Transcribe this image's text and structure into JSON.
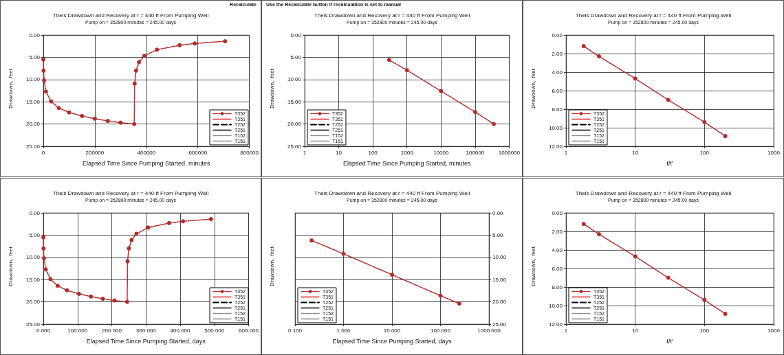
{
  "chart_data": [
    {
      "type": "line",
      "title": "Theis Drawdown and Recovery at r = 440 ft From Pumping Well",
      "subtitle": "Pump on = 352800 minutes = 245.00 days",
      "xlabel": "Elapsed Time Since Pumping Started, minutes",
      "ylabel": "Drawdown,  feet",
      "annotations": [
        "Recalculate"
      ],
      "grid": true,
      "legend": "bottom right",
      "xlim": [
        0,
        800000
      ],
      "xticks": [
        0,
        200000,
        400000,
        600000,
        800000
      ],
      "ylim": [
        25,
        0
      ],
      "yticks": [
        {
          "value": 0,
          "label": "0.00"
        },
        {
          "value": 5,
          "label": "5.00"
        },
        {
          "value": 10,
          "label": "10.00"
        },
        {
          "value": 15,
          "label": "15.00"
        },
        {
          "value": 20,
          "label": "20.00"
        },
        {
          "value": 25,
          "label": "25.00"
        }
      ],
      "x": [
        300,
        1000,
        3000,
        10000,
        30000,
        60000,
        100000,
        150000,
        200000,
        250000,
        300000,
        352800,
        354600,
        360000,
        371400,
        392000,
        441000,
        529200,
        588000,
        705600
      ],
      "series": [
        {
          "name": "T352",
          "color": "#b52a2a",
          "line_style": "dotted",
          "marker": "circle",
          "values": [
            5.5,
            8.0,
            10.2,
            12.7,
            14.9,
            16.4,
            17.4,
            18.2,
            18.8,
            19.3,
            19.7,
            20.0,
            10.9,
            8.0,
            6.1,
            4.7,
            3.3,
            2.3,
            1.9,
            1.4
          ]
        },
        {
          "name": "T351",
          "color": "#dd2222",
          "line_style": "solid",
          "values": [
            null,
            null,
            null,
            null,
            null,
            null,
            null,
            null,
            null,
            null,
            null,
            null,
            null,
            null,
            null,
            null,
            null,
            null,
            null,
            null
          ]
        },
        {
          "name": "T252",
          "color": "#000000",
          "line_style": "dashed",
          "values": [
            null,
            null,
            null,
            null,
            null,
            null,
            null,
            null,
            null,
            null,
            null,
            null,
            null,
            null,
            null,
            null,
            null,
            null,
            null,
            null
          ]
        },
        {
          "name": "T251",
          "color": "#000000",
          "line_style": "solid",
          "values": [
            null,
            null,
            null,
            null,
            null,
            null,
            null,
            null,
            null,
            null,
            null,
            null,
            null,
            null,
            null,
            null,
            null,
            null,
            null,
            null
          ]
        },
        {
          "name": "T152",
          "color": "#888888",
          "line_style": "dotted",
          "values": [
            null,
            null,
            null,
            null,
            null,
            null,
            null,
            null,
            null,
            null,
            null,
            null,
            null,
            null,
            null,
            null,
            null,
            null,
            null,
            null
          ]
        },
        {
          "name": "T151",
          "color": "#888888",
          "line_style": "solid",
          "values": [
            null,
            null,
            null,
            null,
            null,
            null,
            null,
            null,
            null,
            null,
            null,
            null,
            null,
            null,
            null,
            null,
            null,
            null,
            null,
            null
          ]
        }
      ]
    },
    {
      "type": "line",
      "title": "Theis Drawdown and Recovery at r = 440 ft From Pumping Well",
      "subtitle": "Pump on = 352800 minutes = 245.00 days",
      "xlabel": "Elapsed Time Since Pumping Started, minutes",
      "ylabel": "Drawdown,  feet",
      "annotations": [
        "Use the Recalculate button if recalculation is set to manual"
      ],
      "grid": true,
      "legend": "bottom left",
      "log": "x",
      "xlim": [
        1,
        1000000
      ],
      "xticks": [
        1,
        10,
        100,
        1000,
        10000,
        100000,
        1000000
      ],
      "ylim": [
        25,
        0
      ],
      "yticks": [
        {
          "value": 0,
          "label": "0.00"
        },
        {
          "value": 5,
          "label": "5.00"
        },
        {
          "value": 10,
          "label": "10.00"
        },
        {
          "value": 15,
          "label": "15.00"
        },
        {
          "value": 20,
          "label": "20.00"
        },
        {
          "value": 25,
          "label": "25.00"
        }
      ],
      "x": [
        300,
        1000,
        10000,
        100000,
        352800
      ],
      "series": [
        {
          "name": "T352",
          "color": "#b52a2a",
          "line_style": "dotted",
          "marker": "circle",
          "values": [
            5.6,
            7.9,
            12.6,
            17.3,
            20.0
          ]
        },
        {
          "name": "T351",
          "color": "#dd2222",
          "line_style": "solid",
          "values": [
            null,
            null,
            null,
            null,
            null
          ]
        },
        {
          "name": "T252",
          "color": "#000000",
          "line_style": "dashed",
          "values": [
            null,
            null,
            null,
            null,
            null
          ]
        },
        {
          "name": "T251",
          "color": "#000000",
          "line_style": "solid",
          "values": [
            null,
            null,
            null,
            null,
            null
          ]
        },
        {
          "name": "T152",
          "color": "#888888",
          "line_style": "dotted",
          "values": [
            null,
            null,
            null,
            null,
            null
          ]
        },
        {
          "name": "T151",
          "color": "#888888",
          "line_style": "solid",
          "values": [
            null,
            null,
            null,
            null,
            null
          ]
        }
      ]
    },
    {
      "type": "line",
      "title": "Theis Drawdown and Recovery at r = 440 ft From Pumping Well",
      "subtitle": "Pump on = 352800 minutes = 245.00 days",
      "xlabel": "t/t'",
      "ylabel": "Drawdown,  feet",
      "grid": true,
      "legend": "bottom left",
      "log": "x",
      "xlim": [
        1,
        1000
      ],
      "xticks": [
        1,
        10,
        100,
        1000
      ],
      "ylim": [
        12,
        0
      ],
      "yticks": [
        {
          "value": 0,
          "label": "0.00"
        },
        {
          "value": 2,
          "label": "2.00"
        },
        {
          "value": 4,
          "label": "4.00"
        },
        {
          "value": 6,
          "label": "6.00"
        },
        {
          "value": 8,
          "label": "8.00"
        },
        {
          "value": 10,
          "label": "10.00"
        },
        {
          "value": 12,
          "label": "12.00"
        }
      ],
      "x": [
        1.8,
        3,
        10,
        30,
        100,
        200
      ],
      "series": [
        {
          "name": "T352",
          "color": "#b52a2a",
          "line_style": "dotted",
          "marker": "circle",
          "values": [
            1.2,
            2.3,
            4.7,
            7.0,
            9.4,
            10.9
          ]
        },
        {
          "name": "T351",
          "color": "#dd2222",
          "line_style": "solid",
          "values": [
            null,
            null,
            null,
            null,
            null,
            null
          ]
        },
        {
          "name": "T252",
          "color": "#000000",
          "line_style": "dashed",
          "values": [
            null,
            null,
            null,
            null,
            null,
            null
          ]
        },
        {
          "name": "T251",
          "color": "#000000",
          "line_style": "solid",
          "values": [
            null,
            null,
            null,
            null,
            null,
            null
          ]
        },
        {
          "name": "T152",
          "color": "#888888",
          "line_style": "dotted",
          "values": [
            null,
            null,
            null,
            null,
            null,
            null
          ]
        },
        {
          "name": "T151",
          "color": "#888888",
          "line_style": "solid",
          "values": [
            null,
            null,
            null,
            null,
            null,
            null
          ]
        }
      ]
    },
    {
      "type": "line",
      "title": "Theis Drawdown and Recovery at r = 440 ft From Pumping Well",
      "subtitle": "Pump on = 352800 minutes = 245.00 days",
      "xlabel": "Elapsed Time Since Pumping Started, days",
      "ylabel": "Drawdown,  feet",
      "grid": true,
      "legend": "bottom right",
      "xlim": [
        0,
        600
      ],
      "xticks": [
        {
          "value": 0,
          "label": "0.000"
        },
        {
          "value": 100,
          "label": "100.000"
        },
        {
          "value": 200,
          "label": "200.000"
        },
        {
          "value": 300,
          "label": "300.000"
        },
        {
          "value": 400,
          "label": "400.000"
        },
        {
          "value": 500,
          "label": "500.000"
        },
        {
          "value": 600,
          "label": "600.000"
        }
      ],
      "ylim": [
        25,
        0
      ],
      "yticks": [
        {
          "value": 0,
          "label": "0.00"
        },
        {
          "value": 5,
          "label": "5.00"
        },
        {
          "value": 10,
          "label": "10.00"
        },
        {
          "value": 15,
          "label": "15.00"
        },
        {
          "value": 20,
          "label": "20.00"
        },
        {
          "value": 25,
          "label": "25.00"
        }
      ],
      "x": [
        0.2,
        0.7,
        2,
        7,
        21,
        42,
        69,
        104,
        139,
        174,
        208,
        245,
        246.2,
        250,
        257.9,
        272.2,
        306.3,
        367.5,
        408.3,
        490
      ],
      "series": [
        {
          "name": "T352",
          "color": "#b52a2a",
          "line_style": "dotted",
          "marker": "circle",
          "values": [
            5.5,
            8.0,
            10.2,
            12.7,
            14.9,
            16.4,
            17.4,
            18.2,
            18.8,
            19.3,
            19.7,
            20.0,
            10.9,
            8.0,
            6.1,
            4.7,
            3.3,
            2.3,
            1.9,
            1.4
          ]
        },
        {
          "name": "T351",
          "color": "#dd2222",
          "line_style": "solid",
          "values": [
            null,
            null,
            null,
            null,
            null,
            null,
            null,
            null,
            null,
            null,
            null,
            null,
            null,
            null,
            null,
            null,
            null,
            null,
            null,
            null
          ]
        },
        {
          "name": "T252",
          "color": "#000000",
          "line_style": "dashed",
          "values": [
            null,
            null,
            null,
            null,
            null,
            null,
            null,
            null,
            null,
            null,
            null,
            null,
            null,
            null,
            null,
            null,
            null,
            null,
            null,
            null
          ]
        },
        {
          "name": "T251",
          "color": "#000000",
          "line_style": "solid",
          "values": [
            null,
            null,
            null,
            null,
            null,
            null,
            null,
            null,
            null,
            null,
            null,
            null,
            null,
            null,
            null,
            null,
            null,
            null,
            null,
            null
          ]
        },
        {
          "name": "T152",
          "color": "#888888",
          "line_style": "dotted",
          "values": [
            null,
            null,
            null,
            null,
            null,
            null,
            null,
            null,
            null,
            null,
            null,
            null,
            null,
            null,
            null,
            null,
            null,
            null,
            null,
            null
          ]
        },
        {
          "name": "T151",
          "color": "#888888",
          "line_style": "solid",
          "values": [
            null,
            null,
            null,
            null,
            null,
            null,
            null,
            null,
            null,
            null,
            null,
            null,
            null,
            null,
            null,
            null,
            null,
            null,
            null,
            null
          ]
        }
      ]
    },
    {
      "type": "line",
      "title": "Theis Drawdown and Recovery at r = 440 ft From Pumping Well",
      "subtitle": "Pump on = 352800 minutes = 245.00 days",
      "xlabel": "Elapsed Time Since Pumping Started, days",
      "ylabel": "Drawdown,  feet",
      "grid": true,
      "legend": "bottom left",
      "log": "x",
      "xlim": [
        0.1,
        1000
      ],
      "xticks": [
        {
          "value": 0.1,
          "label": "0.100"
        },
        {
          "value": 1,
          "label": "1.000"
        },
        {
          "value": 10,
          "label": "10.000"
        },
        {
          "value": 100,
          "label": "100.000"
        },
        {
          "value": 1000,
          "label": "1000.000"
        }
      ],
      "y2lim": [
        25,
        0
      ],
      "y2ticks": [
        {
          "value": 0,
          "label": "0.00"
        },
        {
          "value": 5,
          "label": "5.00"
        },
        {
          "value": 10,
          "label": "10.00"
        },
        {
          "value": 15,
          "label": "15.00"
        },
        {
          "value": 20,
          "label": "20.00"
        },
        {
          "value": 25,
          "label": "25.00"
        }
      ],
      "x": [
        0.22,
        1,
        10,
        100,
        245
      ],
      "series": [
        {
          "name": "T352",
          "axis": "y2",
          "color": "#b52a2a",
          "line_style": "dotted",
          "marker": "circle",
          "values": [
            6.2,
            9.2,
            13.9,
            18.6,
            20.4
          ]
        },
        {
          "name": "T351",
          "axis": "y2",
          "color": "#dd2222",
          "line_style": "solid",
          "values": [
            null,
            null,
            null,
            null,
            null
          ]
        },
        {
          "name": "T252",
          "axis": "y2",
          "color": "#000000",
          "line_style": "dashed",
          "values": [
            null,
            null,
            null,
            null,
            null
          ]
        },
        {
          "name": "T251",
          "axis": "y2",
          "color": "#000000",
          "line_style": "solid",
          "values": [
            null,
            null,
            null,
            null,
            null
          ]
        },
        {
          "name": "T152",
          "axis": "y2",
          "color": "#888888",
          "line_style": "dotted",
          "values": [
            null,
            null,
            null,
            null,
            null
          ]
        },
        {
          "name": "T151",
          "axis": "y2",
          "color": "#888888",
          "line_style": "solid",
          "values": [
            null,
            null,
            null,
            null,
            null
          ]
        }
      ]
    },
    {
      "type": "line",
      "title": "Theis Drawdown and Recovery at r = 440 ft From Pumping Well",
      "subtitle": "Pump on = 352800 minutes = 245.00 days",
      "xlabel": "t/t'",
      "ylabel": "Drawdown,  feet",
      "grid": true,
      "legend": "bottom left",
      "log": "x",
      "xlim": [
        1,
        1000
      ],
      "xticks": [
        1,
        10,
        100,
        1000
      ],
      "ylim": [
        12,
        0
      ],
      "yticks": [
        {
          "value": 0,
          "label": "0.00"
        },
        {
          "value": 2,
          "label": "2.00"
        },
        {
          "value": 4,
          "label": "4.00"
        },
        {
          "value": 6,
          "label": "6.00"
        },
        {
          "value": 8,
          "label": "8.00"
        },
        {
          "value": 10,
          "label": "10.00"
        },
        {
          "value": 12,
          "label": "12.00"
        }
      ],
      "x": [
        1.8,
        3,
        10,
        30,
        100,
        200
      ],
      "series": [
        {
          "name": "T352",
          "color": "#b52a2a",
          "line_style": "dotted",
          "marker": "circle",
          "values": [
            1.2,
            2.3,
            4.7,
            7.0,
            9.4,
            10.9
          ]
        },
        {
          "name": "T351",
          "color": "#dd2222",
          "line_style": "solid",
          "values": [
            null,
            null,
            null,
            null,
            null,
            null
          ]
        },
        {
          "name": "T252",
          "color": "#000000",
          "line_style": "dashed",
          "values": [
            null,
            null,
            null,
            null,
            null,
            null
          ]
        },
        {
          "name": "T251",
          "color": "#000000",
          "line_style": "solid",
          "values": [
            null,
            null,
            null,
            null,
            null,
            null
          ]
        },
        {
          "name": "T152",
          "color": "#888888",
          "line_style": "dotted",
          "values": [
            null,
            null,
            null,
            null,
            null,
            null
          ]
        },
        {
          "name": "T151",
          "color": "#888888",
          "line_style": "solid",
          "values": [
            null,
            null,
            null,
            null,
            null,
            null
          ]
        }
      ]
    }
  ]
}
